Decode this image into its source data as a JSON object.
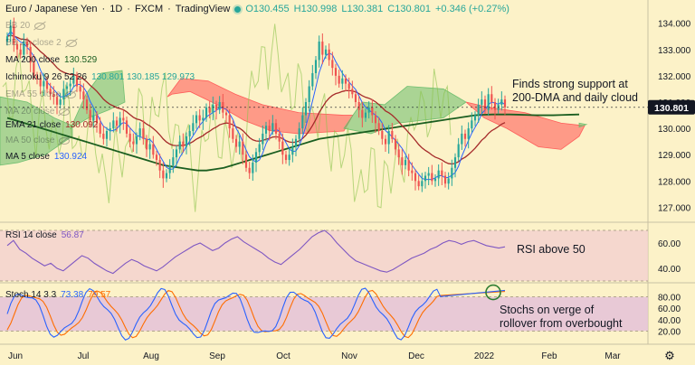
{
  "header": {
    "symbol": "Euro / Japanese Yen",
    "timeframe": "1D",
    "source": "FXCM",
    "platform": "TradingView",
    "open": "O130.455",
    "high": "H130.998",
    "low": "L130.381",
    "close": "C130.801",
    "change": "+0.346 (+0.27%)"
  },
  "indicators": [
    {
      "label": "BB 20",
      "values": "",
      "faded": true,
      "eye": true
    },
    {
      "label": "BB 20 close 2",
      "values": "",
      "faded": true,
      "eye": true
    },
    {
      "label": "MA 200 close",
      "values": "130.529",
      "faded": false,
      "eye": false
    },
    {
      "label": "Ichimoku 9 26 52 26",
      "values": "130.801  130.185  129.973",
      "faded": false,
      "eye": false
    },
    {
      "label": "EMA 55 close",
      "values": "",
      "faded": true,
      "eye": true
    },
    {
      "label": "MA 20 close",
      "values": "",
      "faded": true,
      "eye": true
    },
    {
      "label": "EMA 21 close",
      "values": "130.092",
      "faded": false,
      "eye": false
    },
    {
      "label": "MA 50 close",
      "values": "",
      "faded": true,
      "eye": true
    },
    {
      "label": "MA 5 close",
      "values": "130.924",
      "faded": false,
      "eye": false
    }
  ],
  "annotations": {
    "price": "Finds strong support at\n200-DMA and daily cloud",
    "rsi": "RSI above 50",
    "stoch": "Stochs on verge of\nrollover from overbought"
  },
  "rsi_pane": {
    "label": "RSI 14 close",
    "value": "56.87"
  },
  "stoch_pane": {
    "label": "Stoch 14 3 3",
    "k": "73.38",
    "d": "79.57"
  },
  "current_price": "130.801",
  "colors": {
    "background": "#fcf2c8",
    "bull": "#26a69a",
    "bear": "#ef5350",
    "cloud_bull": "#66bb6a",
    "cloud_bear": "#ff5252",
    "ma200": "#1b5e20",
    "ema21": "#a52a2a",
    "ma5": "#2962ff",
    "chikou": "#8bc34a",
    "rsi": "#7e57c2",
    "stoch_k": "#2962ff",
    "stoch_d": "#ff6d00",
    "price_tag": "#131722"
  },
  "chart_data": [
    {
      "type": "candlestick",
      "title": "Euro / Japanese Yen · 1D · FXCM",
      "x_ticks": [
        "Jun",
        "Jul",
        "Aug",
        "Sep",
        "Oct",
        "Nov",
        "Dec",
        "2022",
        "Feb",
        "Mar"
      ],
      "y_ticks": [
        127.0,
        128.0,
        129.0,
        130.0,
        131.0,
        132.0,
        133.0,
        134.0
      ],
      "ylim": [
        126.5,
        134.4
      ],
      "close": [
        133.5,
        133.9,
        133.2,
        133.0,
        132.8,
        133.3,
        133.1,
        132.5,
        132.0,
        131.9,
        131.6,
        131.8,
        131.5,
        131.3,
        131.2,
        130.9,
        131.1,
        131.5,
        131.6,
        131.7,
        132.0,
        131.6,
        131.4,
        131.1,
        130.7,
        130.3,
        130.5,
        130.2,
        129.8,
        129.6,
        129.9,
        130.0,
        130.3,
        130.1,
        130.4,
        130.3,
        129.8,
        129.5,
        129.4,
        129.7,
        130.0,
        129.6,
        129.2,
        129.4,
        129.0,
        128.8,
        128.4,
        128.1,
        128.3,
        128.6,
        128.9,
        129.2,
        129.5,
        129.3,
        129.7,
        129.9,
        130.2,
        130.5,
        130.3,
        130.4,
        130.8,
        130.6,
        130.9,
        130.7,
        131.0,
        130.6,
        130.5,
        130.0,
        129.6,
        129.3,
        129.5,
        129.0,
        128.5,
        128.3,
        128.7,
        129.1,
        129.4,
        129.8,
        130.1,
        129.9,
        130.2,
        129.8,
        129.5,
        129.0,
        128.8,
        129.0,
        129.3,
        129.6,
        130.0,
        130.5,
        131.0,
        131.6,
        132.1,
        132.6,
        133.3,
        132.8,
        133.0,
        132.6,
        132.3,
        132.0,
        131.7,
        131.9,
        131.7,
        131.5,
        131.3,
        131.0,
        130.7,
        130.4,
        130.6,
        130.8,
        130.5,
        130.2,
        129.9,
        129.6,
        129.4,
        129.9,
        129.6,
        129.2,
        128.9,
        128.6,
        128.8,
        128.4,
        128.3,
        128.0,
        127.8,
        128.0,
        128.2,
        128.3,
        128.0,
        128.1,
        128.4,
        128.2,
        127.9,
        128.1,
        128.5,
        128.9,
        129.4,
        129.8,
        129.6,
        130.0,
        130.3,
        130.5,
        130.9,
        131.1,
        130.7,
        131.3,
        131.0,
        130.7,
        130.9,
        131.1,
        130.8
      ],
      "ma200": [
        130.4,
        130.3,
        130.2,
        130.1,
        130.0,
        129.9,
        129.8,
        129.7,
        129.6,
        129.5,
        129.4,
        129.3,
        129.2,
        129.1,
        129.0,
        128.9,
        128.8,
        128.7,
        128.6,
        128.55,
        128.5,
        128.45,
        128.4,
        128.4,
        128.45,
        128.5,
        128.6,
        128.7,
        128.8,
        128.9,
        129.0,
        129.1,
        129.2,
        129.3,
        129.4,
        129.5,
        129.6,
        129.65,
        129.7,
        129.75,
        129.8,
        129.85,
        129.9,
        129.95,
        130.0,
        130.05,
        130.1,
        130.15,
        130.2,
        130.25,
        130.3,
        130.35,
        130.4,
        130.45,
        130.5,
        130.52,
        130.53,
        130.53,
        130.53,
        130.52,
        130.51,
        130.5,
        130.5,
        130.5,
        130.51,
        130.52,
        130.53
      ],
      "cloud_bull_regions": [
        "mid-May to mid-June",
        "early to mid-July",
        "late December to early January"
      ],
      "cloud_bear_regions": [
        "July to mid-October",
        "January to mid-February"
      ],
      "current_price": 130.801
    },
    {
      "type": "line",
      "title": "RSI 14 close",
      "y_ticks": [
        40.0,
        60.0
      ],
      "ylim": [
        30,
        75
      ],
      "band": [
        30,
        70
      ],
      "last_value": 56.87,
      "values": [
        58,
        62,
        55,
        52,
        48,
        45,
        42,
        44,
        40,
        38,
        42,
        46,
        50,
        48,
        44,
        41,
        38,
        36,
        40,
        44,
        47,
        45,
        42,
        40,
        38,
        41,
        45,
        49,
        52,
        55,
        58,
        60,
        57,
        54,
        56,
        60,
        63,
        65,
        61,
        58,
        55,
        52,
        48,
        45,
        43,
        47,
        51,
        55,
        60,
        65,
        68,
        70,
        66,
        60,
        55,
        50,
        46,
        44,
        42,
        40,
        38,
        37,
        39,
        42,
        45,
        48,
        50,
        52,
        55,
        57,
        60,
        62,
        61,
        59,
        61,
        62,
        60,
        58,
        57,
        56,
        57
      ]
    },
    {
      "type": "line",
      "title": "Stoch 14 3 3",
      "y_ticks": [
        20.0,
        40.0,
        60.0,
        80.0
      ],
      "ylim": [
        0,
        100
      ],
      "band": [
        20,
        80
      ],
      "series": [
        {
          "name": "%K",
          "last_value": 73.38
        },
        {
          "name": "%D",
          "last_value": 79.57
        }
      ]
    }
  ]
}
